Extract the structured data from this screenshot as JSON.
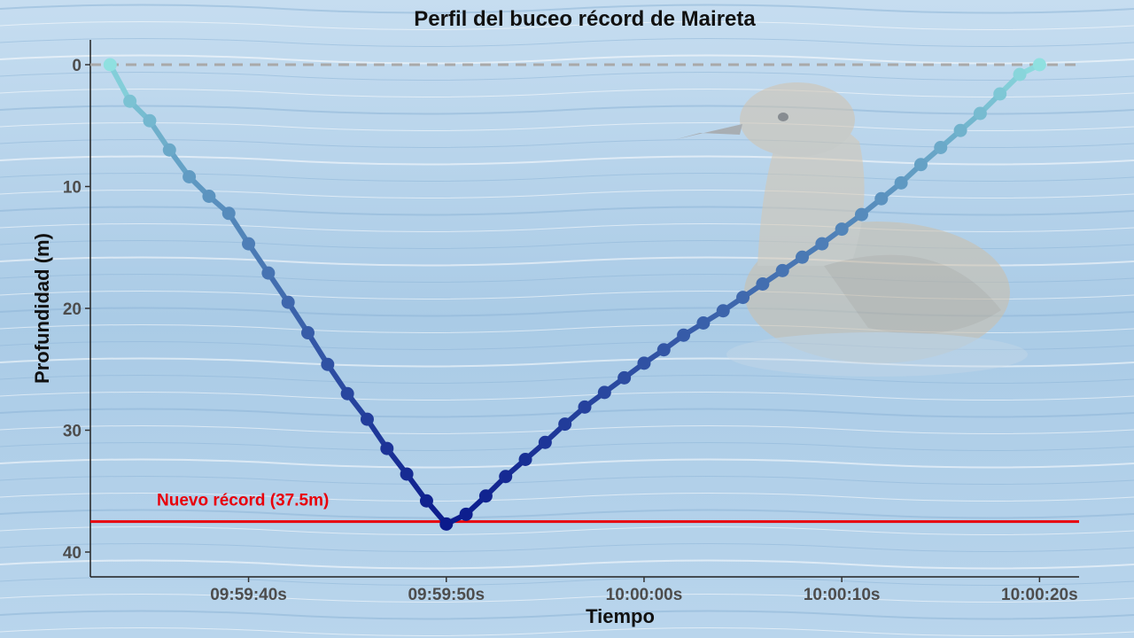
{
  "chart_data": {
    "type": "line",
    "title": "Perfil del buceo récord de Maireta",
    "xlabel": "Tiempo",
    "ylabel": "Profundidad (m)",
    "x_unit": "s",
    "xlim": [
      "09:59:32s",
      "10:00:22s"
    ],
    "ylim": [
      0,
      42
    ],
    "y_reversed": true,
    "xticks": [
      "09:59:40s",
      "09:59:50s",
      "10:00:00s",
      "10:00:10s",
      "10:00:20s"
    ],
    "yticks": [
      0,
      10,
      20,
      30,
      40
    ],
    "grid": false,
    "legend": "none",
    "series": [
      {
        "x": [
          "09:59:33s",
          "09:59:34s",
          "09:59:35s",
          "09:59:36s",
          "09:59:37s",
          "09:59:38s",
          "09:59:39s",
          "09:59:40s",
          "09:59:41s",
          "09:59:42s",
          "09:59:43s",
          "09:59:44s",
          "09:59:45s",
          "09:59:46s",
          "09:59:47s",
          "09:59:48s",
          "09:59:49s",
          "09:59:50s",
          "09:59:51s",
          "09:59:52s",
          "09:59:53s",
          "09:59:54s",
          "09:59:55s",
          "09:59:56s",
          "09:59:57s",
          "09:59:58s",
          "09:59:59s",
          "10:00:00s",
          "10:00:01s",
          "10:00:02s",
          "10:00:03s",
          "10:00:04s",
          "10:00:05s",
          "10:00:06s",
          "10:00:07s",
          "10:00:08s",
          "10:00:09s",
          "10:00:10s",
          "10:00:11s",
          "10:00:12s",
          "10:00:13s",
          "10:00:14s",
          "10:00:15s",
          "10:00:16s",
          "10:00:17s",
          "10:00:18s",
          "10:00:19s",
          "10:00:20s"
        ],
        "y": [
          0,
          3,
          4.6,
          7,
          9.2,
          10.8,
          12.2,
          14.7,
          17.1,
          19.5,
          22,
          24.6,
          27,
          29.1,
          31.5,
          33.6,
          35.8,
          37.7,
          36.9,
          35.4,
          33.8,
          32.4,
          31,
          29.5,
          28.1,
          26.9,
          25.7,
          24.5,
          23.4,
          22.2,
          21.2,
          20.2,
          19.1,
          18,
          16.9,
          15.8,
          14.7,
          13.5,
          12.3,
          11,
          9.7,
          8.2,
          6.8,
          5.4,
          4,
          2.4,
          0.8,
          0
        ]
      }
    ],
    "reference_line": {
      "y": 37.5,
      "label": "Nuevo récord (37.5m)",
      "color": "#e8000b"
    },
    "colors": {
      "shallow": "#8fe0e0",
      "deep": "#0b1a8c",
      "zero_line": "#a9a9a9",
      "water": "#a9cce8"
    }
  }
}
